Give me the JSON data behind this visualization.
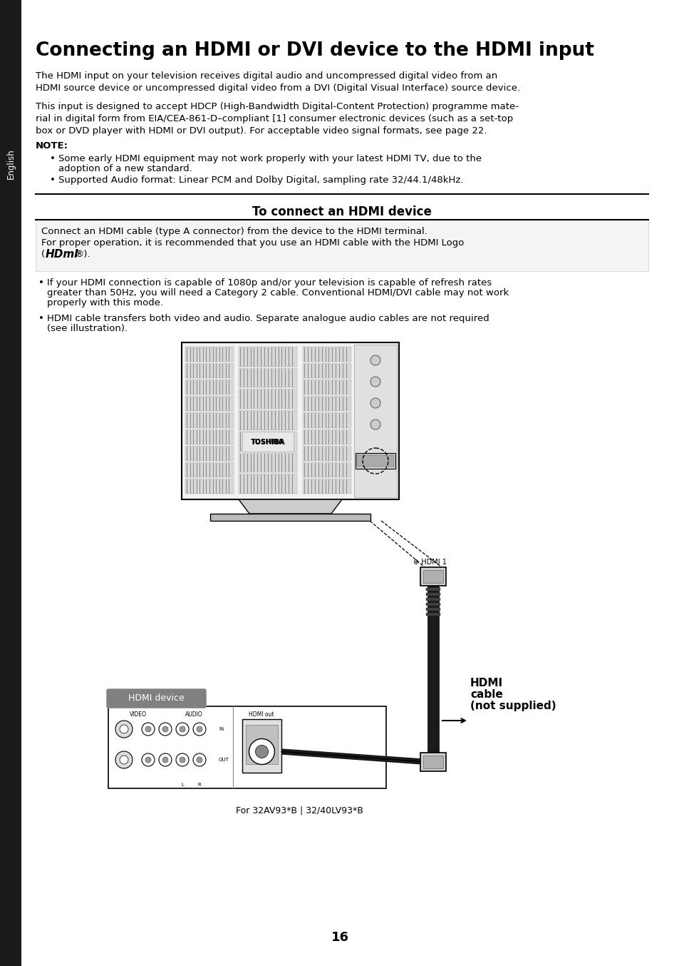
{
  "title": "Connecting an HDMI or DVI device to the HDMI input",
  "sidebar_text": "English",
  "sidebar_bg": "#1a1a1a",
  "page_bg": "#ffffff",
  "body_text_1": "The HDMI input on your television receives digital audio and uncompressed digital video from an\nHDMI source device or uncompressed digital video from a DVI (Digital Visual Interface) source device.",
  "body_text_2": "This input is designed to accept HDCP (High-Bandwidth Digital-Content Protection) programme mate-\nrial in digital form from EIA/CEA-861-D–compliant [1] consumer electronic devices (such as a set-top\nbox or DVD player with HDMI or DVI output). For acceptable video signal formats, see page 22.",
  "note_label": "NOTE:",
  "note_bullet1": "Some early HDMI equipment may not work properly with your latest HDMI TV, due to the adoption of a new standard.",
  "note_bullet2": "Supported Audio format: Linear PCM and Dolby Digital, sampling rate 32/44.1/48kHz.",
  "section_title": "To connect an HDMI device",
  "connect_text1": "Connect an HDMI cable (type A connector) from the device to the HDMI terminal.",
  "connect_text2": "For proper operation, it is recommended that you use an HDMI cable with the HDMI Logo",
  "hdmi_logo": "HDmI®",
  "bullet1a": "If your HDMI connection is capable of 1080p and/or your television is capable of refresh rates",
  "bullet1b": "greater than 50Hz, you will need a Category 2 cable. Conventional HDMI/DVI cable may not work",
  "bullet1c": "properly with this mode.",
  "bullet2a": "HDMI cable transfers both video and audio. Separate analogue audio cables are not required",
  "bullet2b": "(see illustration).",
  "hdmi_device_label": "HDMI device",
  "hdmi_device_label_bg": "#808080",
  "cable_label_line1": "HDMI",
  "cable_label_line2": "cable",
  "cable_label_line3": "(not supplied)",
  "hdmi1_label": "⊕ HDMI 1",
  "for_label": "For 32AV93*B | 32/40LV93*B",
  "page_number": "16",
  "body_fontsize": 9.5,
  "note_fontsize": 9.5,
  "section_title_fontsize": 12
}
